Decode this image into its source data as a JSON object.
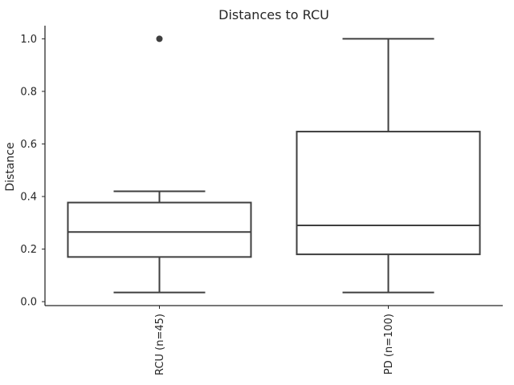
{
  "chart_data": {
    "type": "box",
    "title": "Distances to RCU",
    "xlabel": "",
    "ylabel": "Distance",
    "ylim": [
      -0.015,
      1.05
    ],
    "yticks": [
      0.0,
      0.2,
      0.4,
      0.6,
      0.8,
      1.0
    ],
    "ytick_labels": [
      "0.0",
      "0.2",
      "0.4",
      "0.6",
      "0.8",
      "1.0"
    ],
    "grid": false,
    "categories": [
      "RCU (n=45)",
      "PD (n=100)"
    ],
    "boxes": [
      {
        "category": "RCU (n=45)",
        "whisker_low": 0.035,
        "q1": 0.17,
        "median": 0.265,
        "q3": 0.377,
        "whisker_high": 0.42,
        "outliers": [
          1.0
        ]
      },
      {
        "category": "PD (n=100)",
        "whisker_low": 0.035,
        "q1": 0.18,
        "median": 0.29,
        "q3": 0.647,
        "whisker_high": 1.0,
        "outliers": []
      }
    ],
    "colors": {
      "box_edge": "#3f3f3f",
      "box_fill": "#ffffff",
      "axis": "#262626",
      "text": "#262626"
    }
  }
}
